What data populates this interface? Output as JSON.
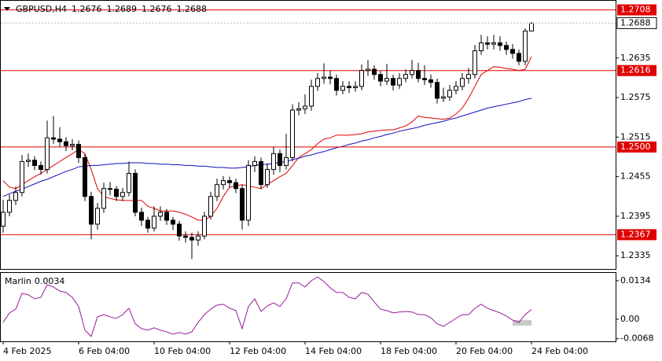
{
  "chart_data": [
    {
      "type": "candlestick",
      "title": "GBPUSD,H4",
      "categories": [
        "4 Feb 2025",
        null,
        null,
        null,
        null,
        null,
        null,
        null,
        null,
        null,
        null,
        null,
        "6 Feb 04:00",
        null,
        null,
        null,
        null,
        null,
        null,
        null,
        null,
        null,
        null,
        null,
        "10 Feb 04:00",
        null,
        null,
        null,
        null,
        null,
        null,
        null,
        null,
        null,
        null,
        null,
        "12 Feb 04:00",
        null,
        null,
        null,
        null,
        null,
        null,
        null,
        null,
        null,
        null,
        null,
        "14 Feb 04:00",
        null,
        null,
        null,
        null,
        null,
        null,
        null,
        null,
        null,
        null,
        null,
        "18 Feb 04:00",
        null,
        null,
        null,
        null,
        null,
        null,
        null,
        null,
        null,
        null,
        null,
        "20 Feb 04:00",
        null,
        null,
        null,
        null,
        null,
        null,
        null,
        null,
        null,
        null,
        null,
        "24 Feb 04:00"
      ],
      "open": [
        1.238,
        1.2401,
        1.2419,
        1.2431,
        1.2478,
        1.248,
        1.2472,
        1.2466,
        1.2514,
        1.2512,
        1.2508,
        1.2502,
        1.2504,
        1.2484,
        1.2425,
        1.2383,
        1.2407,
        1.2437,
        1.2436,
        1.2425,
        1.2431,
        1.246,
        1.2401,
        1.2389,
        1.2377,
        1.2395,
        1.2401,
        1.2389,
        1.2383,
        1.2365,
        1.2363,
        1.2359,
        1.2365,
        1.2395,
        1.2425,
        1.2443,
        1.2449,
        1.2446,
        1.2437,
        1.2389,
        1.2472,
        1.2478,
        1.2443,
        1.2466,
        1.249,
        1.2472,
        1.2484,
        1.2556,
        1.2558,
        1.2562,
        1.2592,
        1.2604,
        1.2606,
        1.2604,
        1.2586,
        1.2592,
        1.259,
        1.2592,
        1.2616,
        1.2618,
        1.261,
        1.26,
        1.2604,
        1.2594,
        1.2604,
        1.261,
        1.2616,
        1.2604,
        1.2602,
        1.2598,
        1.2574,
        1.2576,
        1.2586,
        1.2592,
        1.2604,
        1.261,
        1.2646,
        1.2658,
        1.2656,
        1.2658,
        1.2654,
        1.2648,
        1.2642,
        1.263,
        1.2676
      ],
      "high": [
        1.242,
        1.2428,
        1.244,
        1.2488,
        1.249,
        1.2486,
        1.2478,
        1.254,
        1.2547,
        1.253,
        1.2515,
        1.2512,
        1.251,
        1.249,
        1.2432,
        1.2415,
        1.2446,
        1.2447,
        1.2441,
        1.2438,
        1.2478,
        1.2466,
        1.2408,
        1.2394,
        1.241,
        1.241,
        1.2406,
        1.2394,
        1.2388,
        1.2372,
        1.237,
        1.2372,
        1.2402,
        1.2432,
        1.2452,
        1.2456,
        1.2455,
        1.2452,
        1.2442,
        1.248,
        1.2486,
        1.2484,
        1.2475,
        1.25,
        1.2496,
        1.252,
        1.2565,
        1.2568,
        1.258,
        1.2602,
        1.2612,
        1.2627,
        1.2616,
        1.261,
        1.26,
        1.26,
        1.26,
        1.2625,
        1.2632,
        1.2624,
        1.2615,
        1.2626,
        1.261,
        1.2612,
        1.2618,
        1.2632,
        1.2628,
        1.2624,
        1.261,
        1.2604,
        1.259,
        1.2594,
        1.26,
        1.2612,
        1.262,
        1.2655,
        1.267,
        1.2668,
        1.267,
        1.2668,
        1.266,
        1.2656,
        1.2648,
        1.268,
        1.2689
      ],
      "low": [
        1.237,
        1.2395,
        1.2412,
        1.2425,
        1.247,
        1.2465,
        1.2458,
        1.246,
        1.2505,
        1.25,
        1.2494,
        1.2495,
        1.2476,
        1.2418,
        1.236,
        1.2375,
        1.24,
        1.2427,
        1.2418,
        1.2418,
        1.2425,
        1.2395,
        1.238,
        1.237,
        1.2372,
        1.2388,
        1.2382,
        1.2374,
        1.2358,
        1.2355,
        1.233,
        1.235,
        1.236,
        1.239,
        1.2418,
        1.2436,
        1.2438,
        1.243,
        1.2375,
        1.238,
        1.2462,
        1.2436,
        1.2438,
        1.2458,
        1.2462,
        1.2466,
        1.2478,
        1.2548,
        1.255,
        1.2555,
        1.2585,
        1.2596,
        1.2595,
        1.2578,
        1.258,
        1.2582,
        1.2584,
        1.2586,
        1.2608,
        1.2602,
        1.2592,
        1.2594,
        1.2586,
        1.2588,
        1.2598,
        1.2604,
        1.2598,
        1.2594,
        1.259,
        1.2566,
        1.2568,
        1.257,
        1.258,
        1.2586,
        1.2596,
        1.2604,
        1.264,
        1.2648,
        1.2648,
        1.2646,
        1.264,
        1.2634,
        1.2624,
        1.2624,
        1.2676
      ],
      "close": [
        1.2401,
        1.2419,
        1.2431,
        1.2478,
        1.248,
        1.2472,
        1.2466,
        1.2514,
        1.2512,
        1.2508,
        1.2502,
        1.2504,
        1.2484,
        1.2425,
        1.2383,
        1.2407,
        1.2437,
        1.2436,
        1.2425,
        1.2431,
        1.246,
        1.2401,
        1.2389,
        1.2377,
        1.2395,
        1.2401,
        1.2389,
        1.2383,
        1.2365,
        1.2363,
        1.2359,
        1.2365,
        1.2395,
        1.2425,
        1.2443,
        1.2449,
        1.2446,
        1.2437,
        1.2389,
        1.2472,
        1.2478,
        1.2443,
        1.2466,
        1.249,
        1.2472,
        1.2484,
        1.2556,
        1.2558,
        1.2562,
        1.2592,
        1.2604,
        1.2606,
        1.2604,
        1.2586,
        1.2592,
        1.259,
        1.2592,
        1.2616,
        1.2618,
        1.261,
        1.26,
        1.2604,
        1.2594,
        1.2604,
        1.261,
        1.2616,
        1.2604,
        1.2602,
        1.2598,
        1.2574,
        1.2576,
        1.2586,
        1.2592,
        1.2604,
        1.261,
        1.2646,
        1.2658,
        1.2656,
        1.2658,
        1.2654,
        1.2648,
        1.2642,
        1.263,
        1.2676,
        1.2688
      ],
      "lines": [
        {
          "color": "#e00000",
          "values": [
            1.2449,
            1.2439,
            1.2437,
            1.2443,
            1.2449,
            1.2455,
            1.246,
            1.2466,
            1.2472,
            1.2478,
            1.2484,
            1.249,
            1.2496,
            1.249,
            1.2466,
            1.2437,
            1.2425,
            1.2422,
            1.242,
            1.2419,
            1.2419,
            1.2419,
            1.2419,
            1.241,
            1.2407,
            1.2403,
            1.2403,
            1.2403,
            1.2401,
            1.2398,
            1.2394,
            1.2389,
            1.2389,
            1.2395,
            1.2407,
            1.2425,
            1.2439,
            1.2441,
            1.2443,
            1.2441,
            1.2439,
            1.2437,
            1.2443,
            1.2449,
            1.2455,
            1.246,
            1.2472,
            1.2484,
            1.249,
            1.2496,
            1.2505,
            1.2512,
            1.2514,
            1.2518,
            1.2518,
            1.2518,
            1.2519,
            1.252,
            1.2523,
            1.2524,
            1.2525,
            1.2526,
            1.2526,
            1.2529,
            1.2532,
            1.2538,
            1.2547,
            1.2545,
            1.2544,
            1.2543,
            1.2542,
            1.2544,
            1.255,
            1.2559,
            1.2574,
            1.2592,
            1.261,
            1.2616,
            1.2622,
            1.2621,
            1.2619,
            1.2618,
            1.2616,
            1.2618,
            1.2637
          ]
        },
        {
          "color": "#1010c0",
          "values": [
            1.2425,
            1.2429,
            1.2433,
            1.2436,
            1.244,
            1.2444,
            1.2448,
            1.2451,
            1.2455,
            1.2459,
            1.2463,
            1.2466,
            1.247,
            1.2471,
            1.2472,
            1.2472,
            1.2473,
            1.2474,
            1.2475,
            1.2475,
            1.2476,
            1.2476,
            1.2476,
            1.2475,
            1.2475,
            1.2474,
            1.2474,
            1.2473,
            1.2473,
            1.2472,
            1.2472,
            1.2471,
            1.2471,
            1.247,
            1.2469,
            1.2469,
            1.2468,
            1.2468,
            1.2469,
            1.247,
            1.2472,
            1.2473,
            1.2474,
            1.2475,
            1.2477,
            1.2478,
            1.2481,
            1.2483,
            1.2486,
            1.2488,
            1.2491,
            1.2493,
            1.2496,
            1.2499,
            1.2501,
            1.2504,
            1.2506,
            1.2509,
            1.2511,
            1.2514,
            1.2516,
            1.2519,
            1.2521,
            1.2524,
            1.2526,
            1.2528,
            1.253,
            1.2533,
            1.2535,
            1.2537,
            1.2539,
            1.2542,
            1.2544,
            1.2547,
            1.255,
            1.2553,
            1.2556,
            1.2559,
            1.2561,
            1.2563,
            1.2565,
            1.2567,
            1.2569,
            1.2572,
            1.2574
          ]
        }
      ],
      "levels": [
        1.2708,
        1.2616,
        {
          "value": 1.25,
          "label": "1.2500"
        },
        1.2367
      ],
      "level_color": "#e00000",
      "ylim": [
        1.2315,
        1.2723
      ],
      "yticks": [
        1.2635,
        1.2575,
        1.2515,
        1.2455,
        1.2395,
        1.2335
      ]
    },
    {
      "type": "line",
      "series": [
        {
          "name": "Marlin",
          "color": "#9a1a9a",
          "values": [
            -0.0011,
            0.0022,
            0.0035,
            0.009,
            0.0085,
            0.0071,
            0.0076,
            0.012,
            0.0112,
            0.0098,
            0.0093,
            0.0076,
            0.0044,
            -0.0038,
            -0.006,
            0.0008,
            0.0016,
            0.0008,
            0.0003,
            0.0016,
            0.0038,
            -0.0016,
            -0.0033,
            -0.0038,
            -0.003,
            -0.0038,
            -0.0044,
            -0.0052,
            -0.0046,
            -0.0052,
            -0.0044,
            -0.0011,
            0.0016,
            0.0035,
            0.0049,
            0.0052,
            0.0038,
            0.003,
            -0.0033,
            0.0044,
            0.0071,
            0.0027,
            0.0046,
            0.0057,
            0.0044,
            0.0071,
            0.0126,
            0.0126,
            0.0112,
            0.0134,
            0.0147,
            0.0131,
            0.0109,
            0.0093,
            0.0093,
            0.0076,
            0.0071,
            0.0093,
            0.0087,
            0.006,
            0.0035,
            0.003,
            0.0022,
            0.0025,
            0.0027,
            0.0025,
            0.0016,
            0.0016,
            0.0005,
            -0.0016,
            -0.0025,
            -0.0011,
            0.0003,
            0.0016,
            0.0016,
            0.0038,
            0.0052,
            0.0038,
            0.003,
            0.0022,
            0.0011,
            -0.0003,
            -0.0011,
            0.0016,
            0.0034
          ]
        }
      ],
      "ylim": [
        -0.0077,
        0.0161
      ],
      "yticks": [
        0.0134,
        {
          "value": 0,
          "label": "0.00"
        },
        -0.0068
      ]
    }
  ]
}
